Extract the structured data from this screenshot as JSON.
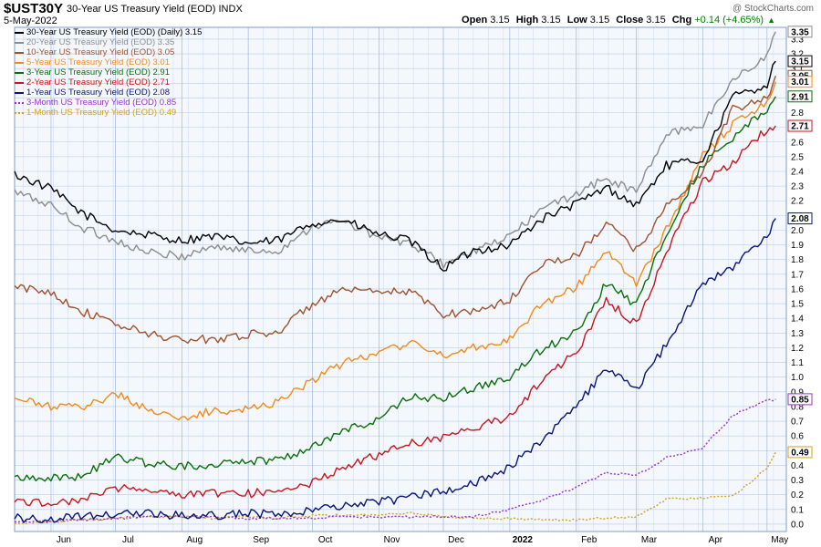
{
  "header": {
    "symbol": "$UST30Y",
    "description": "30-Year US Treasury Yield (EOD)",
    "exchange": "INDX",
    "date": "5-May-2022",
    "brand": "@ StockCharts.com",
    "open_label": "Open",
    "open": "3.15",
    "high_label": "High",
    "high": "3.15",
    "low_label": "Low",
    "low": "3.15",
    "close_label": "Close",
    "close": "3.15",
    "chg_label": "Chg",
    "chg": "+0.14 (+4.65%)",
    "chg_color": "#008000"
  },
  "legend": [
    {
      "label": "30-Year US Treasury Yield (EOD) (Daily) 3.15",
      "color": "#000000",
      "dashed": false
    },
    {
      "label": "20-Year US Treasury Yield (EOD) 3.35",
      "color": "#8c8c8c",
      "dashed": false
    },
    {
      "label": "10-Year US Treasury Yield (EOD) 3.05",
      "color": "#a0522d",
      "dashed": false
    },
    {
      "label": "5-Year US Treasury Yield (EOD) 3.01",
      "color": "#f28a1a",
      "dashed": false
    },
    {
      "label": "3-Year US Treasury Yield (EOD) 2.91",
      "color": "#0a6e0a",
      "dashed": false
    },
    {
      "label": "2-Year US Treasury Yield (EOD) 2.71",
      "color": "#c8161d",
      "dashed": false
    },
    {
      "label": "1-Year US Treasury Yield (EOD) 2.08",
      "color": "#0a147a",
      "dashed": false
    },
    {
      "label": "3-Month US Treasury Yield (EOD) 0.85",
      "color": "#9b30d0",
      "dashed": true
    },
    {
      "label": "1-Month US Treasury Yield (EOD) 0.49",
      "color": "#d4a017",
      "dashed": true
    }
  ],
  "chart_data": {
    "type": "line",
    "title": "$UST30Y 30-Year US Treasury Yield (EOD) INDX",
    "x_ticks": [
      "Jun",
      "Jul",
      "Aug",
      "Sep",
      "Oct",
      "Nov",
      "Dec",
      "2022",
      "Feb",
      "Mar",
      "Apr",
      "May"
    ],
    "x": [
      "2021-05-15",
      "2021-06-01",
      "2021-06-15",
      "2021-07-01",
      "2021-07-15",
      "2021-08-01",
      "2021-08-15",
      "2021-09-01",
      "2021-09-15",
      "2021-10-01",
      "2021-10-15",
      "2021-11-01",
      "2021-11-15",
      "2021-12-01",
      "2021-12-15",
      "2022-01-01",
      "2022-01-15",
      "2022-02-01",
      "2022-02-15",
      "2022-03-01",
      "2022-03-15",
      "2022-04-01",
      "2022-04-15",
      "2022-05-01",
      "2022-05-05"
    ],
    "ylim": [
      -0.05,
      3.38
    ],
    "y_ticks": [
      0.0,
      0.1,
      0.2,
      0.3,
      0.4,
      0.5,
      0.6,
      0.7,
      0.8,
      0.9,
      1.0,
      1.1,
      1.2,
      1.3,
      1.4,
      1.5,
      1.6,
      1.7,
      1.8,
      1.9,
      2.0,
      2.1,
      2.2,
      2.3,
      2.4,
      2.5,
      2.6,
      2.7,
      2.8,
      2.9,
      3.0,
      3.1,
      3.2,
      3.3
    ],
    "y_axis_side": "right",
    "grid": true,
    "series": [
      {
        "name": "30-Year US Treasury Yield (EOD) (Daily)",
        "last": "3.15",
        "color": "#000000",
        "dashed": false,
        "values": [
          2.38,
          2.28,
          2.12,
          2.0,
          1.97,
          1.93,
          1.96,
          1.91,
          1.93,
          2.05,
          2.07,
          1.97,
          1.93,
          1.74,
          1.86,
          1.9,
          2.07,
          2.18,
          2.29,
          2.17,
          2.44,
          2.48,
          2.91,
          2.99,
          3.15
        ]
      },
      {
        "name": "20-Year US Treasury Yield (EOD)",
        "last": "3.35",
        "color": "#8c8c8c",
        "dashed": false,
        "values": [
          2.26,
          2.17,
          2.02,
          1.93,
          1.85,
          1.82,
          1.89,
          1.86,
          1.86,
          2.03,
          2.06,
          1.95,
          1.91,
          1.77,
          1.85,
          1.96,
          2.13,
          2.25,
          2.35,
          2.26,
          2.65,
          2.72,
          3.02,
          3.19,
          3.35
        ]
      },
      {
        "name": "10-Year US Treasury Yield (EOD)",
        "last": "3.05",
        "color": "#a0522d",
        "dashed": false,
        "values": [
          1.61,
          1.58,
          1.45,
          1.36,
          1.3,
          1.25,
          1.26,
          1.29,
          1.31,
          1.5,
          1.59,
          1.57,
          1.59,
          1.43,
          1.45,
          1.52,
          1.77,
          1.82,
          2.05,
          1.86,
          2.16,
          2.39,
          2.82,
          2.9,
          3.05
        ]
      },
      {
        "name": "5-Year US Treasury Yield (EOD)",
        "last": "3.01",
        "color": "#f28a1a",
        "dashed": false,
        "values": [
          0.85,
          0.8,
          0.79,
          0.89,
          0.79,
          0.71,
          0.77,
          0.78,
          0.84,
          0.98,
          1.09,
          1.18,
          1.23,
          1.15,
          1.2,
          1.26,
          1.49,
          1.61,
          1.86,
          1.63,
          2.0,
          2.51,
          2.72,
          2.88,
          3.01
        ]
      },
      {
        "name": "3-Year US Treasury Yield (EOD)",
        "last": "2.91",
        "color": "#0a6e0a",
        "dashed": false,
        "values": [
          0.32,
          0.32,
          0.32,
          0.46,
          0.42,
          0.39,
          0.41,
          0.43,
          0.44,
          0.53,
          0.63,
          0.72,
          0.86,
          0.86,
          0.92,
          1.0,
          1.18,
          1.3,
          1.64,
          1.49,
          1.98,
          2.45,
          2.63,
          2.82,
          2.91
        ]
      },
      {
        "name": "2-Year US Treasury Yield (EOD)",
        "last": "2.71",
        "color": "#c8161d",
        "dashed": false,
        "values": [
          0.15,
          0.15,
          0.16,
          0.25,
          0.24,
          0.2,
          0.21,
          0.21,
          0.22,
          0.28,
          0.39,
          0.47,
          0.55,
          0.59,
          0.65,
          0.73,
          0.97,
          1.17,
          1.52,
          1.36,
          1.85,
          2.33,
          2.46,
          2.69,
          2.71
        ]
      },
      {
        "name": "1-Year US Treasury Yield (EOD)",
        "last": "2.08",
        "color": "#0a147a",
        "dashed": false,
        "values": [
          0.04,
          0.04,
          0.05,
          0.07,
          0.07,
          0.06,
          0.06,
          0.07,
          0.07,
          0.09,
          0.12,
          0.15,
          0.18,
          0.23,
          0.28,
          0.39,
          0.56,
          0.8,
          1.05,
          0.92,
          1.22,
          1.63,
          1.75,
          1.97,
          2.08
        ]
      },
      {
        "name": "3-Month US Treasury Yield (EOD)",
        "last": "0.85",
        "color": "#9b30d0",
        "dashed": true,
        "values": [
          0.02,
          0.02,
          0.03,
          0.04,
          0.05,
          0.05,
          0.05,
          0.04,
          0.04,
          0.04,
          0.05,
          0.05,
          0.05,
          0.05,
          0.05,
          0.1,
          0.16,
          0.25,
          0.35,
          0.33,
          0.45,
          0.52,
          0.74,
          0.84,
          0.85
        ]
      },
      {
        "name": "1-Month US Treasury Yield (EOD)",
        "last": "0.49",
        "color": "#d4a017",
        "dashed": true,
        "values": [
          0.01,
          0.01,
          0.03,
          0.04,
          0.05,
          0.05,
          0.04,
          0.05,
          0.04,
          0.06,
          0.06,
          0.06,
          0.08,
          0.05,
          0.04,
          0.04,
          0.03,
          0.03,
          0.04,
          0.05,
          0.17,
          0.18,
          0.19,
          0.38,
          0.49
        ]
      }
    ]
  }
}
